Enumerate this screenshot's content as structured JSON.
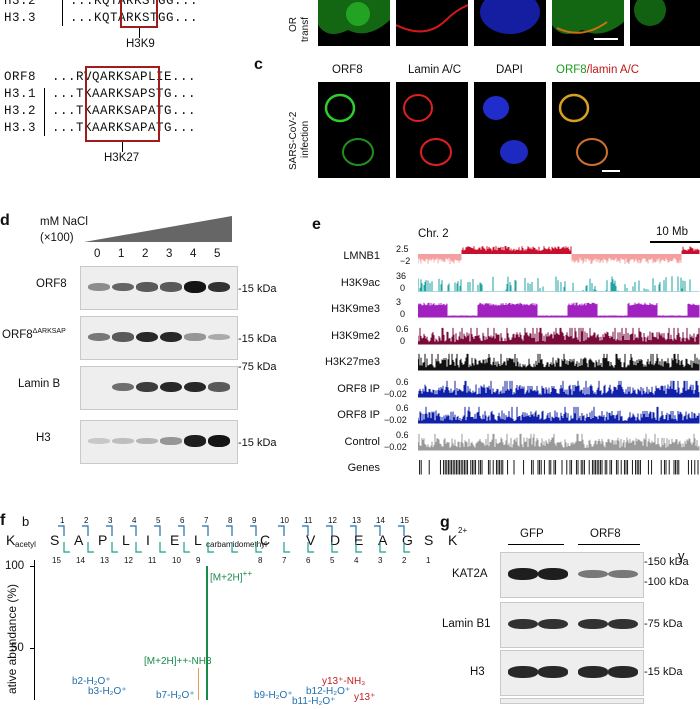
{
  "panel_a": {
    "top_rows": [
      {
        "name": "H3.2",
        "seq": "...KQTARKSTGG..."
      },
      {
        "name": "H3.3",
        "seq": "...KQTARKSTGG..."
      }
    ],
    "top_site": "H3K9",
    "rows": [
      {
        "name": "ORF8",
        "seq": "...RVQARKSAPLIE..."
      },
      {
        "name": "H3.1",
        "seq": "...TKAARKSAPSTG..."
      },
      {
        "name": "H3.2",
        "seq": "...TKAARKSAPATG..."
      },
      {
        "name": "H3.3",
        "seq": "...TKAARKSAPATG..."
      }
    ],
    "site": "H3K27"
  },
  "panel_b": {
    "row_label_lines": [
      "OR",
      "transf"
    ]
  },
  "panel_c": {
    "letter": "c",
    "headers": [
      "ORF8",
      "Lamin A/C",
      "DAPI"
    ],
    "merge_header": {
      "part1": "ORF8",
      "part2": "/lamin A/C"
    },
    "row_label_lines": [
      "SARS-CoV-2",
      "infection"
    ],
    "colors": {
      "green": "#2ecc2e",
      "red": "#e02020",
      "blue": "#2838ff"
    }
  },
  "panel_d": {
    "letter": "d",
    "title_lines": [
      "mM NaCl",
      "(×100)"
    ],
    "lanes": [
      "0",
      "1",
      "2",
      "3",
      "4",
      "5"
    ],
    "blots": [
      {
        "label": "ORF8",
        "label_sup": "",
        "marker": "15 kDa",
        "intensities": [
          0.35,
          0.55,
          0.6,
          0.6,
          0.95,
          0.8
        ]
      },
      {
        "label": "ORF8",
        "label_sup": "ΔARKSAP",
        "marker": "15 kDa",
        "intensities": [
          0.45,
          0.6,
          0.85,
          0.85,
          0.3,
          0.2
        ]
      },
      {
        "label": "Lamin  B",
        "label_sup": "",
        "marker": "75 kDa",
        "intensities": [
          0.0,
          0.5,
          0.75,
          0.85,
          0.85,
          0.6
        ]
      },
      {
        "label": "H3",
        "label_sup": "",
        "marker": "15 kDa",
        "intensities": [
          0.05,
          0.1,
          0.15,
          0.3,
          0.9,
          0.95
        ]
      }
    ]
  },
  "panel_e": {
    "letter": "e",
    "chrom": "Chr. 2",
    "scale": "10 Mb",
    "tracks": [
      {
        "name": "LMNB1",
        "top": "2.5",
        "bottom": "−2",
        "color": "#c8102e",
        "color2": "#f4a0a0"
      },
      {
        "name": "H3K9ac",
        "top": "36",
        "bottom": "0",
        "color": "#1fa3a3"
      },
      {
        "name": "H3K9me3",
        "top": "3",
        "bottom": "0",
        "color": "#a020c0"
      },
      {
        "name": "H3K9me2",
        "top": "0.6",
        "bottom": "0",
        "color": "#7a0a3a"
      },
      {
        "name": "H3K27me3",
        "top": "",
        "bottom": "",
        "color": "#111111"
      },
      {
        "name": "ORF8 IP",
        "top": "0.6",
        "bottom": "−0.02",
        "color": "#1020a8"
      },
      {
        "name": "ORF8 IP",
        "top": "0.6",
        "bottom": "−0.02",
        "color": "#1020a8"
      },
      {
        "name": "Control",
        "top": "0.6",
        "bottom": "−0.02",
        "color": "#999999"
      },
      {
        "name": "Genes",
        "top": "",
        "bottom": "",
        "color": "#000000"
      }
    ]
  },
  "panel_f": {
    "letter": "f",
    "b_label": "b",
    "y_label": "y",
    "b_numbers": [
      "1",
      "2",
      "3",
      "4",
      "5",
      "6",
      "7",
      "8",
      "9",
      "10",
      "11",
      "12",
      "13",
      "14",
      "15"
    ],
    "y_numbers": [
      "15",
      "14",
      "13",
      "12",
      "11",
      "10",
      "9",
      "8",
      "7",
      "6",
      "5",
      "4",
      "3",
      "2",
      "1"
    ],
    "residues": [
      "K",
      "S",
      "A",
      "P",
      "L",
      "I",
      "E",
      "L",
      "C",
      "V",
      "D",
      "E",
      "A",
      "G",
      "S",
      "K"
    ],
    "mod_acetyl": "acetyl",
    "mod_carb": "carbamidomethyl",
    "charge": "2+",
    "yaxis_label": "ative abundance (%)",
    "yticks": [
      "100",
      "50"
    ],
    "annotations": {
      "m2h": "[M+2H]",
      "m2h_sup": "++",
      "m2h_nh3": "[M+2H]++-NH3",
      "b2": "b2-H₂O⁺",
      "b3": "b3-H₂O⁺",
      "b7": "b7-H₂O⁺",
      "b9": "b9-H₂O⁺",
      "b11": "b11-H₂O⁺",
      "b12": "b12-H₂O⁺",
      "y13nh3": "y13⁺-NH₃",
      "y13": "y13⁺"
    }
  },
  "panel_g": {
    "letter": "g",
    "groups": [
      "GFP",
      "ORF8"
    ],
    "blots": [
      {
        "label": "KAT2A",
        "markers": [
          "150 kDa",
          "100 kDa"
        ]
      },
      {
        "label": "Lamin B1",
        "markers": [
          "75 kDa"
        ]
      },
      {
        "label": "H3",
        "markers": [
          "15 kDa"
        ]
      }
    ]
  }
}
